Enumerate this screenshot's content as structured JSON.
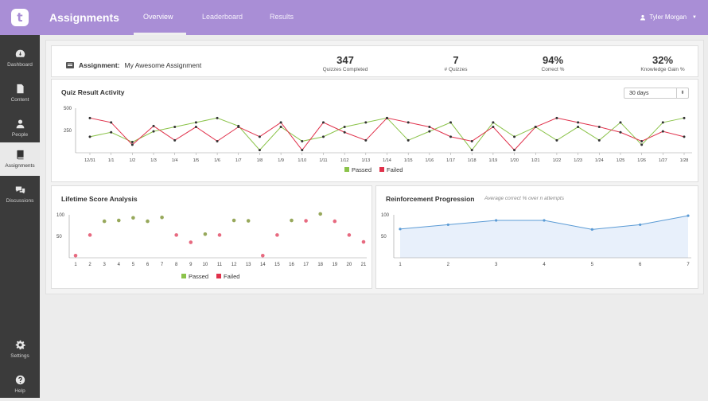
{
  "header": {
    "title": "Assignments",
    "tabs": [
      {
        "label": "Overview"
      },
      {
        "label": "Leaderboard"
      },
      {
        "label": "Results"
      }
    ],
    "user": {
      "name": "Tyler Morgan"
    }
  },
  "sidebar": {
    "items": [
      {
        "label": "Dashboard"
      },
      {
        "label": "Content"
      },
      {
        "label": "People"
      },
      {
        "label": "Assignments"
      },
      {
        "label": "Discussions"
      }
    ],
    "bottom": [
      {
        "label": "Settings"
      },
      {
        "label": "Help"
      }
    ]
  },
  "summary": {
    "label": "Assignment:",
    "name": "My Awesome Assignment",
    "stats": [
      {
        "value": "347",
        "label": "Quizzes Completed"
      },
      {
        "value": "7",
        "label": "# Quizzes"
      },
      {
        "value": "94%",
        "label": "Correct %"
      },
      {
        "value": "32%",
        "label": "Knowledge Gain %"
      }
    ]
  },
  "activity": {
    "title": "Quiz Result Activity",
    "range": "30 days"
  },
  "lifetime": {
    "title": "Lifetime Score Analysis"
  },
  "reinforcement": {
    "title": "Reinforcement Progression",
    "subtitle": "Average correct % over n attempts"
  },
  "colors": {
    "passed": "#8bc34a",
    "failed": "#e0314b",
    "header": "#a98ed6",
    "area": "#e8f0fb",
    "area_line": "#5b9bd5"
  },
  "chart_data": [
    {
      "type": "line",
      "categories": [
        "12/31",
        "1/1",
        "1/2",
        "1/3",
        "1/4",
        "1/5",
        "1/6",
        "1/7",
        "1/8",
        "1/9",
        "1/10",
        "1/11",
        "1/12",
        "1/13",
        "1/14",
        "1/15",
        "1/16",
        "1/17",
        "1/18",
        "1/19",
        "1/20",
        "1/21",
        "1/22",
        "1/23",
        "1/24",
        "1/25",
        "1/26",
        "1/27",
        "1/28"
      ],
      "series": [
        {
          "name": "Passed",
          "values": [
            180,
            230,
            120,
            240,
            290,
            340,
            390,
            300,
            30,
            290,
            130,
            180,
            290,
            340,
            390,
            140,
            240,
            340,
            30,
            340,
            180,
            290,
            140,
            290,
            140,
            340,
            90,
            340,
            390
          ]
        },
        {
          "name": "Failed",
          "values": [
            390,
            340,
            90,
            300,
            140,
            290,
            130,
            290,
            180,
            340,
            30,
            340,
            230,
            140,
            390,
            340,
            290,
            180,
            130,
            290,
            30,
            290,
            390,
            340,
            290,
            230,
            130,
            240,
            180
          ]
        }
      ],
      "ylim": [
        0,
        500
      ],
      "yticks": [
        250,
        500
      ],
      "legend": "bottom"
    },
    {
      "type": "scatter",
      "x": [
        1,
        2,
        3,
        4,
        5,
        6,
        7,
        8,
        9,
        10,
        11,
        12,
        13,
        14,
        15,
        16,
        17,
        18,
        19,
        20,
        21
      ],
      "series": [
        {
          "name": "Passed",
          "points": [
            [
              3,
              85
            ],
            [
              4,
              87
            ],
            [
              5,
              93
            ],
            [
              6,
              85
            ],
            [
              7,
              94
            ],
            [
              10,
              55
            ],
            [
              12,
              87
            ],
            [
              13,
              86
            ],
            [
              16,
              87
            ],
            [
              18,
              102
            ]
          ]
        },
        {
          "name": "Failed",
          "points": [
            [
              1,
              5
            ],
            [
              2,
              53
            ],
            [
              8,
              53
            ],
            [
              9,
              36
            ],
            [
              11,
              53
            ],
            [
              14,
              5
            ],
            [
              15,
              53
            ],
            [
              17,
              86
            ],
            [
              19,
              85
            ],
            [
              20,
              53
            ],
            [
              21,
              37
            ]
          ]
        }
      ],
      "ylim": [
        0,
        100
      ],
      "yticks": [
        50,
        100
      ],
      "legend": "bottom"
    },
    {
      "type": "area",
      "x": [
        1,
        2,
        3,
        4,
        5,
        6,
        7
      ],
      "values": [
        67,
        77,
        87,
        87,
        66,
        77,
        98
      ],
      "ylim": [
        0,
        100
      ],
      "yticks": [
        50,
        100
      ]
    }
  ]
}
